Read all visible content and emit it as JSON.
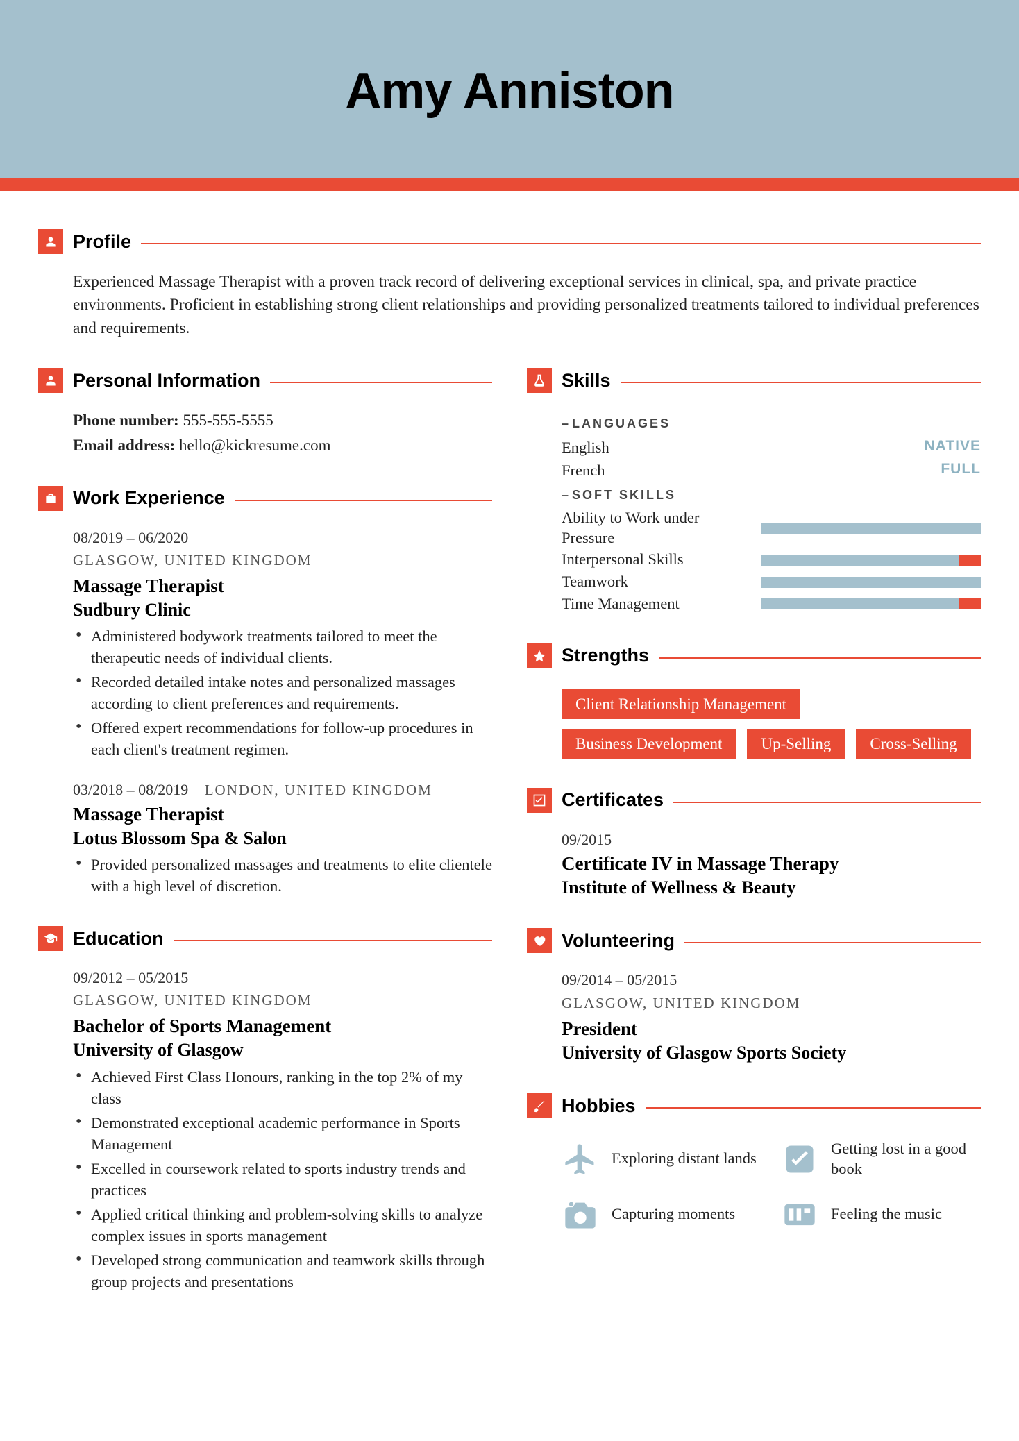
{
  "colors": {
    "band": "#a4c0cd",
    "accent": "#e94b35",
    "text": "#1a1a1a",
    "muted": "#555555",
    "skill_bar": "#a4c0cd",
    "hobby_icon": "#a4c0cd",
    "lang_level": "#8db2c1"
  },
  "name": "Amy Anniston",
  "profile": {
    "title": "Profile",
    "text": "Experienced Massage Therapist with a proven track record of delivering exceptional services in clinical, spa, and private practice environments. Proficient in establishing strong client relationships and providing personalized treatments tailored to individual preferences and requirements."
  },
  "personal": {
    "title": "Personal Information",
    "phone_label": "Phone number:",
    "phone": "555-555-5555",
    "email_label": "Email address:",
    "email": "hello@kickresume.com"
  },
  "work": {
    "title": "Work Experience",
    "items": [
      {
        "dates": "08/2019 – 06/2020",
        "location": "GLASGOW, UNITED KINGDOM",
        "role": "Massage Therapist",
        "org": "Sudbury Clinic",
        "bullets": [
          "Administered bodywork treatments tailored to meet the therapeutic needs of individual clients.",
          "Recorded detailed intake notes and personalized massages according to client preferences and requirements.",
          "Offered expert recommendations for follow-up procedures in each client's treatment regimen."
        ]
      },
      {
        "dates": "03/2018 – 08/2019",
        "location_inline": "LONDON, UNITED KINGDOM",
        "role": "Massage Therapist",
        "org": "Lotus Blossom Spa & Salon",
        "bullets": [
          "Provided personalized massages and treatments to elite clientele with a high level of discretion."
        ]
      }
    ]
  },
  "education": {
    "title": "Education",
    "items": [
      {
        "dates": "09/2012 – 05/2015",
        "location": "GLASGOW, UNITED KINGDOM",
        "degree": "Bachelor of Sports Management",
        "school": "University of Glasgow",
        "bullets": [
          "Achieved First Class Honours, ranking in the top 2% of my class",
          "Demonstrated exceptional academic performance in Sports Management",
          "Excelled in coursework related to sports industry trends and practices",
          "Applied critical thinking and problem-solving skills to analyze complex issues in sports management",
          "Developed strong communication and teamwork skills through group projects and presentations"
        ]
      }
    ]
  },
  "skills": {
    "title": "Skills",
    "languages_header": "LANGUAGES",
    "languages": [
      {
        "name": "English",
        "level": "NATIVE"
      },
      {
        "name": "French",
        "level": "FULL"
      }
    ],
    "soft_header": "SOFT SKILLS",
    "soft": [
      {
        "name": "Ability to Work under Pressure",
        "value": 100,
        "overcap": 0
      },
      {
        "name": "Interpersonal Skills",
        "value": 100,
        "overcap": 10
      },
      {
        "name": "Teamwork",
        "value": 100,
        "overcap": 0
      },
      {
        "name": "Time Management",
        "value": 100,
        "overcap": 10
      }
    ]
  },
  "strengths": {
    "title": "Strengths",
    "tags": [
      "Client Relationship Management",
      "Business Development",
      "Up-Selling",
      "Cross-Selling"
    ]
  },
  "certificates": {
    "title": "Certificates",
    "items": [
      {
        "dates": "09/2015",
        "name": "Certificate IV in Massage Therapy",
        "org": "Institute of Wellness & Beauty"
      }
    ]
  },
  "volunteering": {
    "title": "Volunteering",
    "items": [
      {
        "dates": "09/2014 – 05/2015",
        "location": "GLASGOW, UNITED KINGDOM",
        "role": "President",
        "org": "University of Glasgow Sports Society"
      }
    ]
  },
  "hobbies": {
    "title": "Hobbies",
    "items": [
      {
        "icon": "plane",
        "label": "Exploring distant lands"
      },
      {
        "icon": "check",
        "label": "Getting lost in a good book"
      },
      {
        "icon": "camera",
        "label": "Capturing moments"
      },
      {
        "icon": "music",
        "label": "Feeling the music"
      }
    ]
  }
}
